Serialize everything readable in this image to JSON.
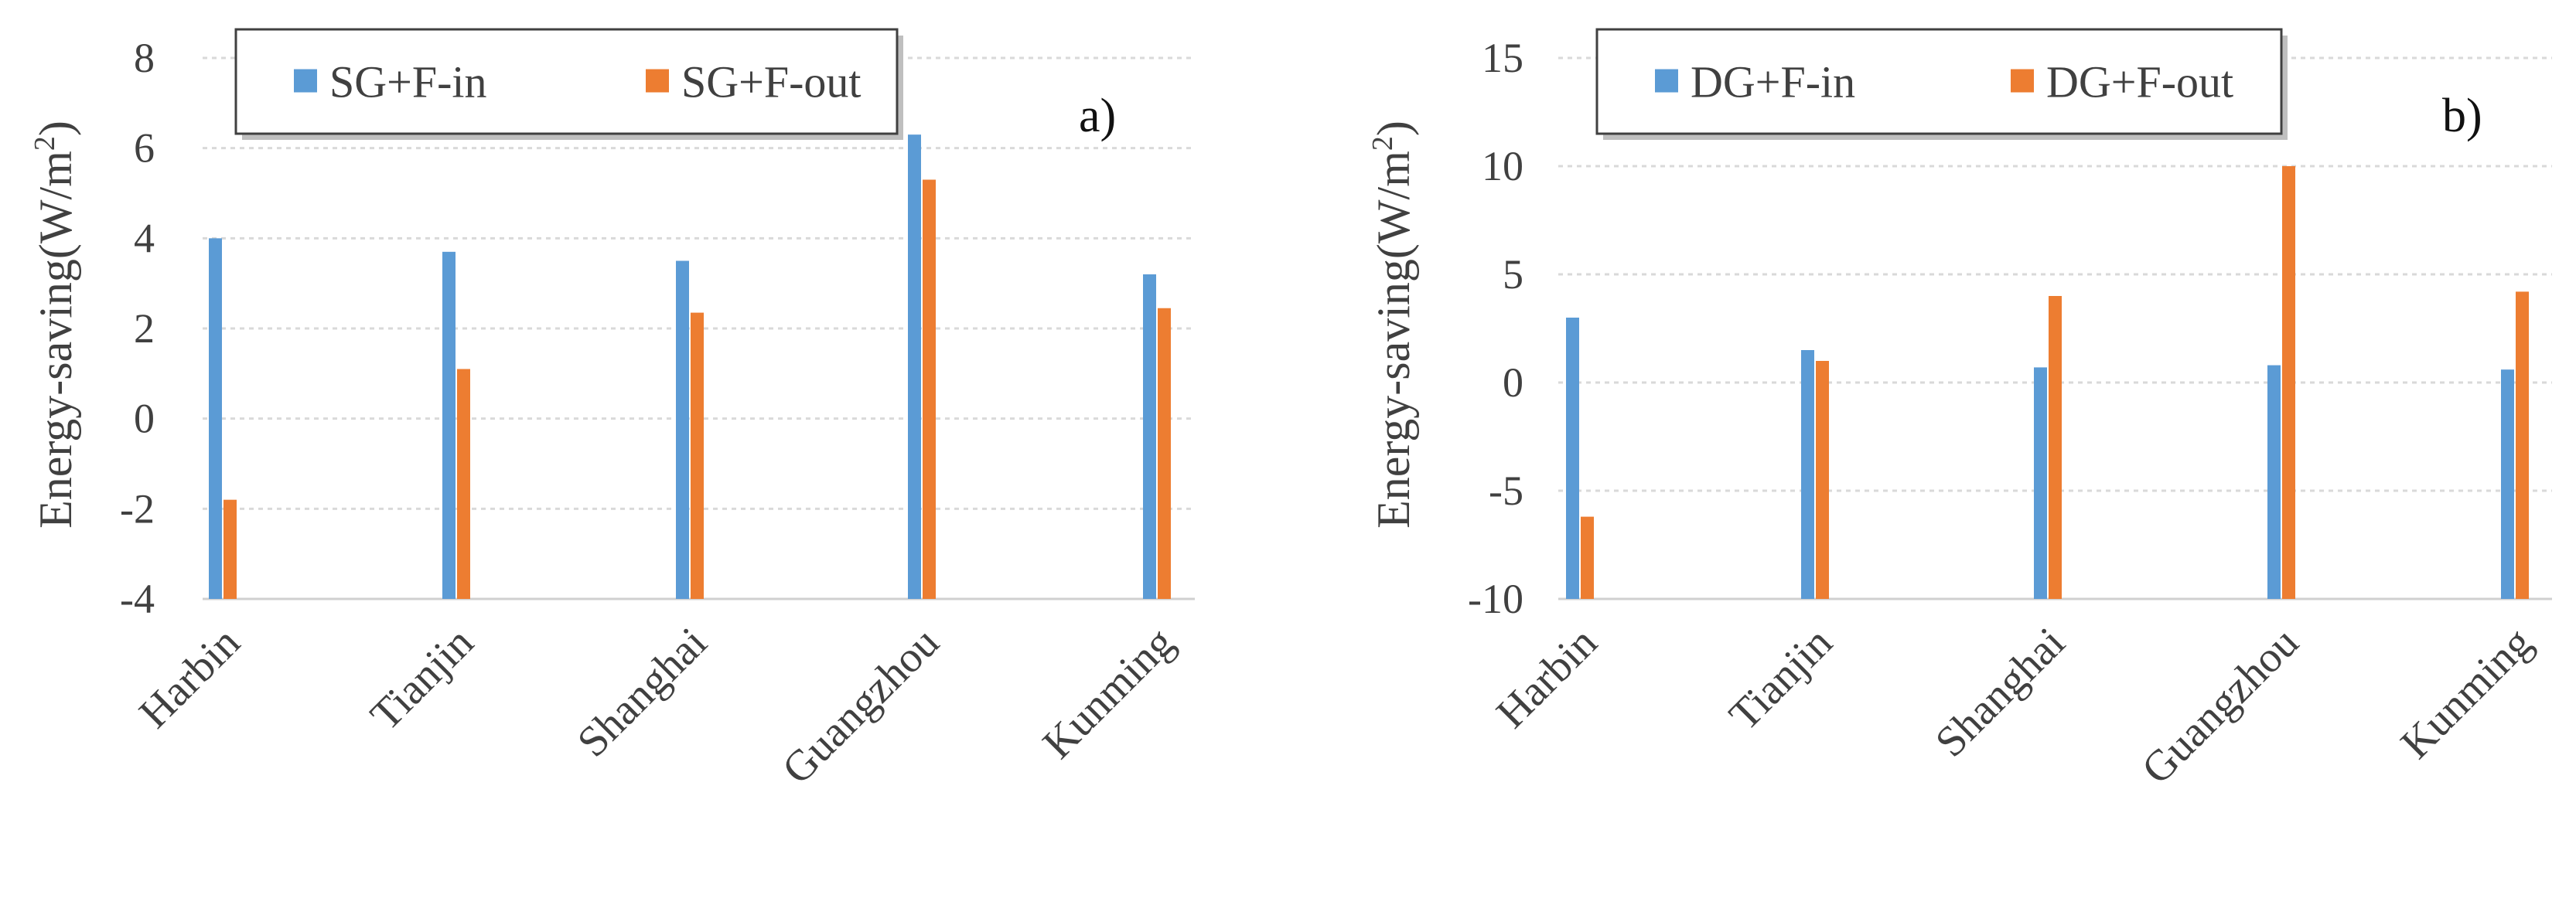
{
  "chart_data": [
    {
      "type": "bar",
      "panel_label": "a)",
      "ylabel_main": "Energy-saving(W/m",
      "ylabel_sup": "2",
      "ylabel_close": ")",
      "xlabel": "",
      "categories": [
        "Harbin",
        "Tianjin",
        "Shanghai",
        "Guangzhou",
        "Kunming"
      ],
      "series": [
        {
          "name": "SG+F-in",
          "color": "#5b9bd5",
          "values": [
            4.0,
            3.7,
            3.5,
            6.3,
            3.2
          ]
        },
        {
          "name": "SG+F-out",
          "color": "#ed7d31",
          "values": [
            -1.8,
            1.1,
            2.35,
            5.3,
            2.45
          ]
        }
      ],
      "ylim": [
        -4,
        8
      ],
      "yticks": [
        -4,
        -2,
        0,
        2,
        4,
        6,
        8
      ],
      "grid": true,
      "legend_position": "top"
    },
    {
      "type": "bar",
      "panel_label": "b)",
      "ylabel_main": "Energy-saving(W/m",
      "ylabel_sup": "2",
      "ylabel_close": ")",
      "xlabel": "",
      "categories": [
        "Harbin",
        "Tianjin",
        "Shanghai",
        "Guangzhou",
        "Kunming"
      ],
      "series": [
        {
          "name": "DG+F-in",
          "color": "#5b9bd5",
          "values": [
            3.0,
            1.5,
            0.7,
            0.8,
            0.6
          ]
        },
        {
          "name": "DG+F-out",
          "color": "#ed7d31",
          "values": [
            -6.2,
            1.0,
            4.0,
            10.0,
            4.2
          ]
        }
      ],
      "ylim": [
        -10,
        15
      ],
      "yticks": [
        -10,
        -5,
        0,
        5,
        10,
        15
      ],
      "grid": true,
      "legend_position": "top"
    }
  ]
}
